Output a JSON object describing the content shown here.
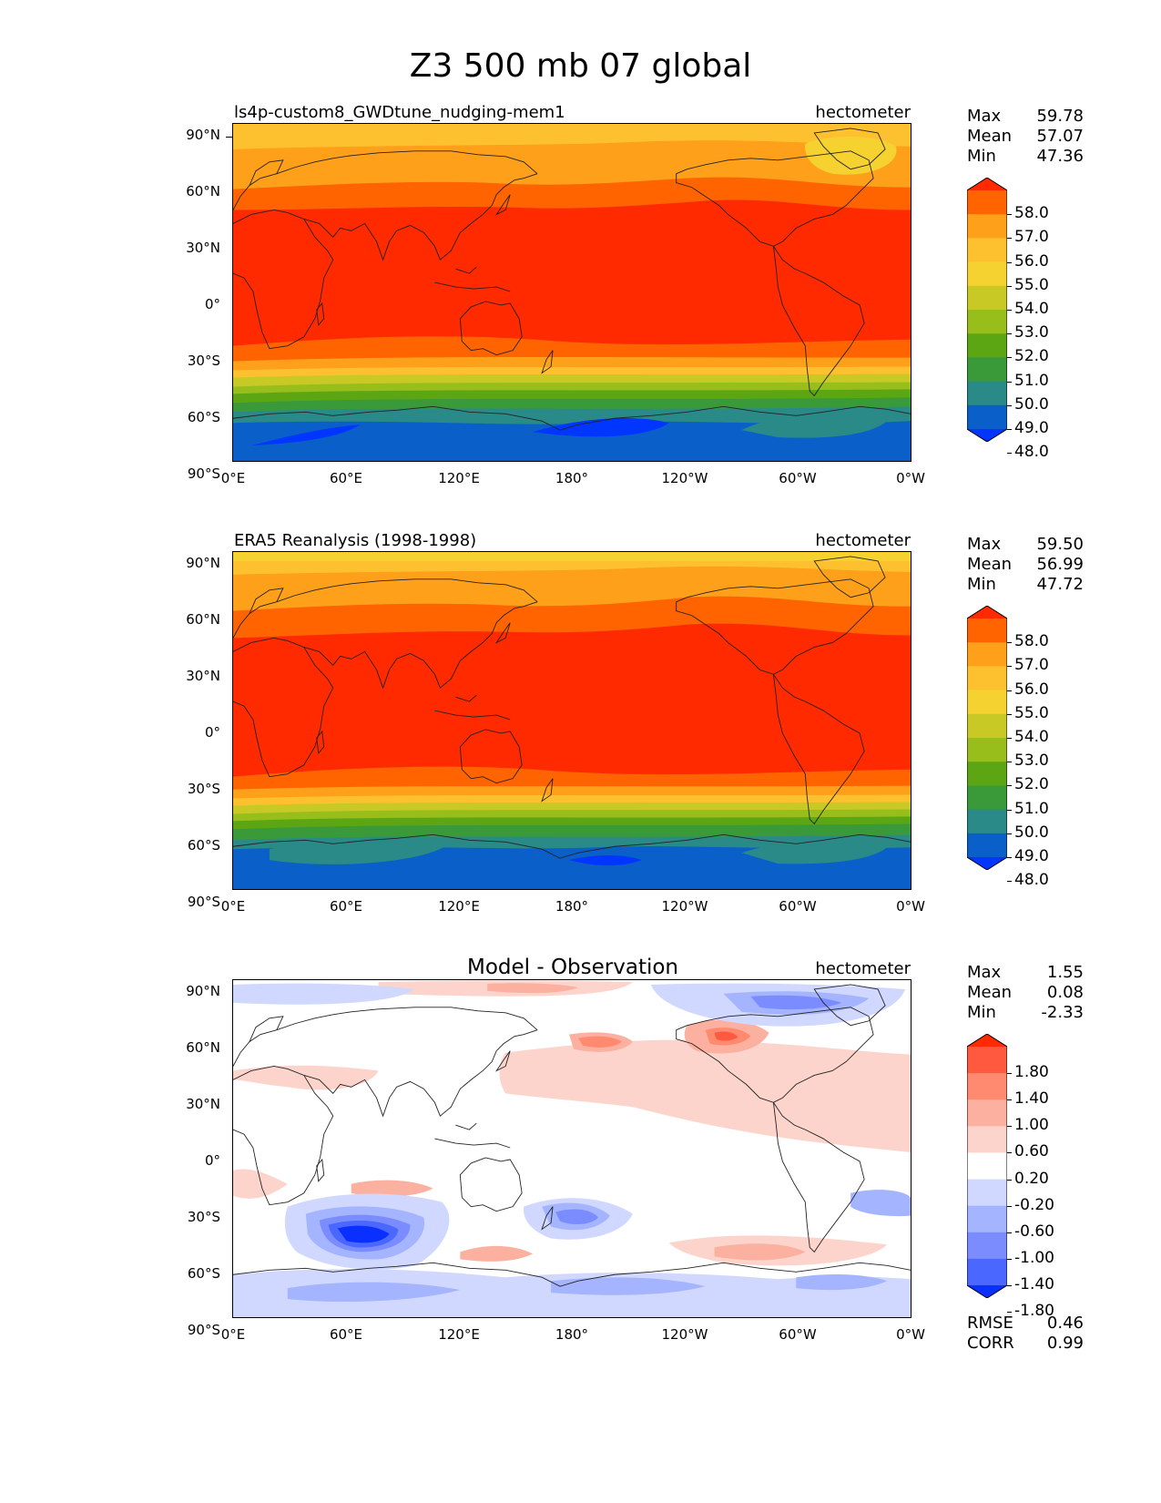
{
  "title": "Z3 500 mb 07 global",
  "lat_labels": [
    "90°N",
    "60°N",
    "30°N",
    "0°",
    "30°S",
    "60°S",
    "90°S"
  ],
  "lon_labels": [
    "0°E",
    "60°E",
    "120°E",
    "180°",
    "120°W",
    "60°W",
    "0°W"
  ],
  "panels": [
    {
      "title": "ls4p-custom8_GWDtune_nudging-mem1",
      "units": "hectometer",
      "stats": {
        "max_label": "Max",
        "max": "59.78",
        "mean_label": "Mean",
        "mean": "57.07",
        "min_label": "Min",
        "min": "47.36"
      },
      "colorbar": {
        "labels": [
          "58.0",
          "57.0",
          "56.0",
          "55.0",
          "54.0",
          "53.0",
          "52.0",
          "51.0",
          "50.0",
          "49.0",
          "48.0"
        ],
        "colors": [
          "#ff2a00",
          "#ff6400",
          "#ffa01a",
          "#fdc130",
          "#f6d230",
          "#c9c926",
          "#98be1c",
          "#5ca614",
          "#3a9a3a",
          "#2a8a88",
          "#0a60c8",
          "#0036ff"
        ]
      }
    },
    {
      "title": "ERA5 Reanalysis (1998-1998)",
      "units": "hectometer",
      "stats": {
        "max_label": "Max",
        "max": "59.50",
        "mean_label": "Mean",
        "mean": "56.99",
        "min_label": "Min",
        "min": "47.72"
      },
      "colorbar": {
        "labels": [
          "58.0",
          "57.0",
          "56.0",
          "55.0",
          "54.0",
          "53.0",
          "52.0",
          "51.0",
          "50.0",
          "49.0",
          "48.0"
        ],
        "colors": [
          "#ff2a00",
          "#ff6400",
          "#ffa01a",
          "#fdc130",
          "#f6d230",
          "#c9c926",
          "#98be1c",
          "#5ca614",
          "#3a9a3a",
          "#2a8a88",
          "#0a60c8",
          "#0036ff"
        ]
      }
    },
    {
      "title": "Model - Observation",
      "units": "hectometer",
      "stats": {
        "max_label": "Max",
        "max": "1.55",
        "mean_label": "Mean",
        "mean": "0.08",
        "min_label": "Min",
        "min": "-2.33"
      },
      "colorbar": {
        "labels": [
          "1.80",
          "1.40",
          "1.00",
          "0.60",
          "0.20",
          "-0.20",
          "-0.60",
          "-1.00",
          "-1.40",
          "-1.80"
        ],
        "colors": [
          "#ff2a00",
          "#ff5a40",
          "#ff8a70",
          "#fbb0a0",
          "#fdd4cc",
          "#ffffff",
          "#d0d8ff",
          "#a4b4ff",
          "#7a8cff",
          "#4a68ff",
          "#0a30ff"
        ]
      },
      "metrics": {
        "rmse_label": "RMSE",
        "rmse": "0.46",
        "corr_label": "CORR",
        "corr": "0.99"
      }
    }
  ],
  "map_colors": {
    "c58": "#ff2a00",
    "c57": "#ff6400",
    "c56": "#ffa01a",
    "c55": "#fdc130",
    "c54": "#f6d230",
    "c53": "#c9c926",
    "c52": "#98be1c",
    "c51": "#5ca614",
    "c50": "#3a9a3a",
    "c49": "#2a8a88",
    "c48": "#0a60c8",
    "c47": "#0036ff",
    "d_pos1": "#fdd4cc",
    "d_pos2": "#fbb0a0",
    "d_pos3": "#ff8a70",
    "d_pos4": "#ff5a40",
    "d_neg1": "#d0d8ff",
    "d_neg2": "#a4b4ff",
    "d_neg3": "#7a8cff",
    "d_neg4": "#2a50ff"
  }
}
